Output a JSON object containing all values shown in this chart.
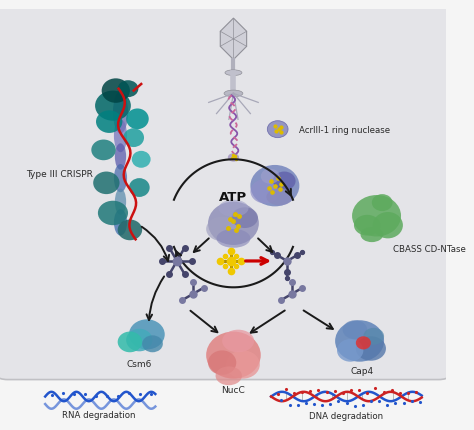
{
  "bg_color": "#e8e8ea",
  "bg_outer": "#f5f5f5",
  "labels": {
    "type3_crispr": "Type III CRISPR",
    "acriii": "AcrIII-1 ring nuclease",
    "cbass": "CBASS CD-NTase",
    "csm6": "Csm6",
    "nucc": "NucC",
    "cap4": "Cap4",
    "atp": "ATP",
    "rna_deg": "RNA degradation",
    "dna_deg": "DNA degradation"
  },
  "arrow_color": "#1a1a1a",
  "red_arrow_color": "#cc0000",
  "label_color": "#2a2a2a",
  "panel_border_color": "#c0c0c4",
  "panel_bg": "#e4e4e8"
}
